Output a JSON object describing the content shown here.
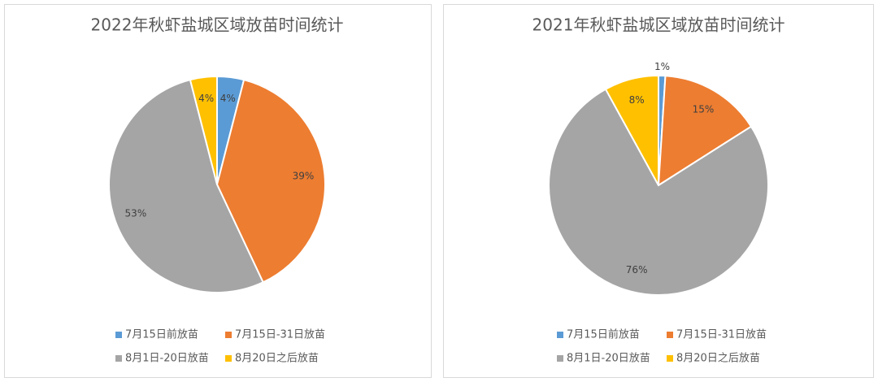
{
  "chart_data": [
    {
      "type": "pie",
      "title": "2022年秋虾盐城区域放苗时间统计",
      "categories": [
        "7月15日前放苗",
        "7月15日-31日放苗",
        "8月1日-20日放苗",
        "8月20日之后放苗"
      ],
      "values": [
        4,
        39,
        53,
        4
      ],
      "value_labels": [
        "4%",
        "39%",
        "53%",
        "4%"
      ],
      "colors": [
        "#5b9bd5",
        "#ed7d31",
        "#a5a5a5",
        "#ffc000"
      ]
    },
    {
      "type": "pie",
      "title": "2021年秋虾盐城区域放苗时间统计",
      "categories": [
        "7月15日前放苗",
        "7月15日-31日放苗",
        "8月1日-20日放苗",
        "8月20日之后放苗"
      ],
      "values": [
        1,
        15,
        76,
        8
      ],
      "value_labels": [
        "1%",
        "15%",
        "76%",
        "8%"
      ],
      "colors": [
        "#5b9bd5",
        "#ed7d31",
        "#a5a5a5",
        "#ffc000"
      ]
    }
  ]
}
